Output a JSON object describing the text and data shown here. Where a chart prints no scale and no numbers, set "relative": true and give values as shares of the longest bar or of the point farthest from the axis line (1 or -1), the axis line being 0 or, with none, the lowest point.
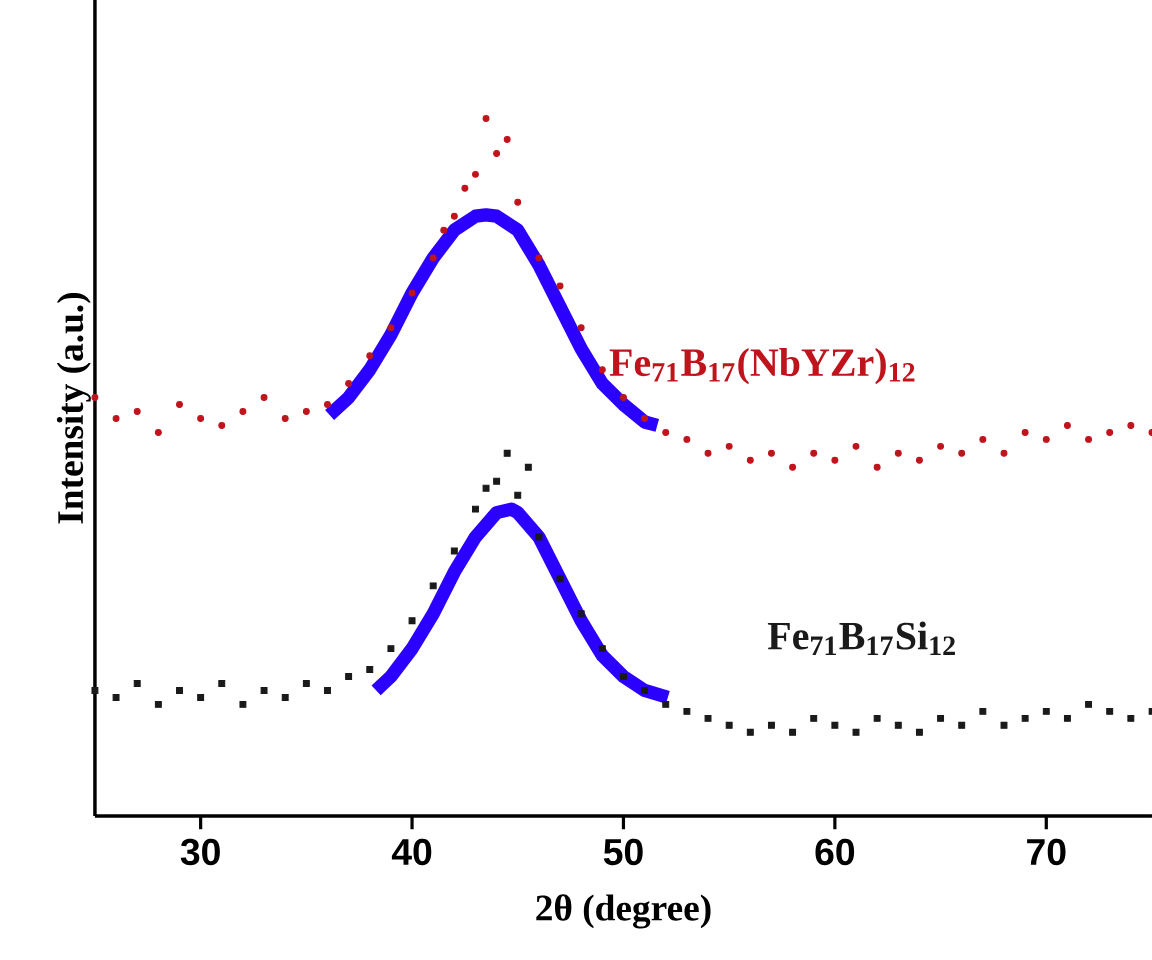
{
  "chart_data": {
    "type": "scatter",
    "xlabel": "2θ (degree)",
    "ylabel": "Intensity (a.u.)",
    "xlim": [
      25,
      75
    ],
    "xticks": [
      30,
      40,
      50,
      60,
      70
    ],
    "relative": true,
    "tick_labels": "x",
    "series": [
      {
        "name": "Fe$_{71}$B$_{17}$(NbYZr)$_{12}$",
        "marker": "circle",
        "color": "#c0141c",
        "x": [
          25,
          26,
          27,
          28,
          29,
          30,
          31,
          32,
          33,
          34,
          35,
          36,
          37,
          38,
          39,
          40,
          41,
          41.5,
          42,
          42.5,
          43,
          43.5,
          44,
          44.5,
          45,
          46,
          47,
          48,
          49,
          50,
          51,
          52,
          53,
          54,
          55,
          56,
          57,
          58,
          59,
          60,
          61,
          62,
          63,
          64,
          65,
          66,
          67,
          68,
          69,
          70,
          71,
          72,
          73,
          74,
          75
        ],
        "values": [
          0.6,
          0.57,
          0.58,
          0.55,
          0.59,
          0.57,
          0.56,
          0.58,
          0.6,
          0.57,
          0.58,
          0.59,
          0.62,
          0.66,
          0.7,
          0.75,
          0.8,
          0.84,
          0.86,
          0.9,
          0.92,
          1.0,
          0.95,
          0.97,
          0.88,
          0.8,
          0.76,
          0.7,
          0.64,
          0.6,
          0.57,
          0.55,
          0.54,
          0.52,
          0.53,
          0.51,
          0.52,
          0.5,
          0.52,
          0.51,
          0.53,
          0.5,
          0.52,
          0.51,
          0.53,
          0.52,
          0.54,
          0.52,
          0.55,
          0.54,
          0.56,
          0.54,
          0.55,
          0.56,
          0.55
        ]
      },
      {
        "name": "Fe$_{71}$B$_{17}$Si$_{12}$",
        "marker": "square",
        "color": "#1a1a1a",
        "x": [
          25,
          26,
          27,
          28,
          29,
          30,
          31,
          32,
          33,
          34,
          35,
          36,
          37,
          38,
          39,
          40,
          41,
          42,
          43,
          43.5,
          44,
          44.5,
          45,
          45.5,
          46,
          47,
          48,
          49,
          50,
          51,
          52,
          53,
          54,
          55,
          56,
          57,
          58,
          59,
          60,
          61,
          62,
          63,
          64,
          65,
          66,
          67,
          68,
          69,
          70,
          71,
          72,
          73,
          74,
          75
        ],
        "values": [
          0.18,
          0.17,
          0.19,
          0.16,
          0.18,
          0.17,
          0.19,
          0.16,
          0.18,
          0.17,
          0.19,
          0.18,
          0.2,
          0.21,
          0.24,
          0.28,
          0.33,
          0.38,
          0.44,
          0.47,
          0.48,
          0.52,
          0.46,
          0.5,
          0.4,
          0.34,
          0.29,
          0.24,
          0.2,
          0.18,
          0.16,
          0.15,
          0.14,
          0.13,
          0.12,
          0.13,
          0.12,
          0.14,
          0.13,
          0.12,
          0.14,
          0.13,
          0.12,
          0.14,
          0.13,
          0.15,
          0.13,
          0.14,
          0.15,
          0.14,
          0.16,
          0.15,
          0.14,
          0.15
        ]
      },
      {
        "type": "line",
        "line_style": "solid",
        "color": "#2b00ff",
        "x": [
          36.1,
          37,
          38,
          39,
          40,
          41,
          42,
          43,
          43.5,
          44,
          45,
          46,
          47,
          48,
          49,
          50,
          51,
          51.6
        ],
        "values": [
          0.575,
          0.6,
          0.64,
          0.69,
          0.75,
          0.8,
          0.84,
          0.86,
          0.862,
          0.86,
          0.84,
          0.79,
          0.73,
          0.67,
          0.62,
          0.59,
          0.565,
          0.56
        ]
      },
      {
        "type": "line",
        "line_style": "solid",
        "color": "#2b00ff",
        "x": [
          38.3,
          39,
          40,
          41,
          42,
          43,
          44,
          44.7,
          45,
          46,
          47,
          48,
          49,
          50,
          51,
          52.1
        ],
        "values": [
          0.18,
          0.2,
          0.24,
          0.29,
          0.35,
          0.4,
          0.435,
          0.44,
          0.435,
          0.4,
          0.34,
          0.28,
          0.23,
          0.2,
          0.18,
          0.17
        ]
      }
    ]
  }
}
